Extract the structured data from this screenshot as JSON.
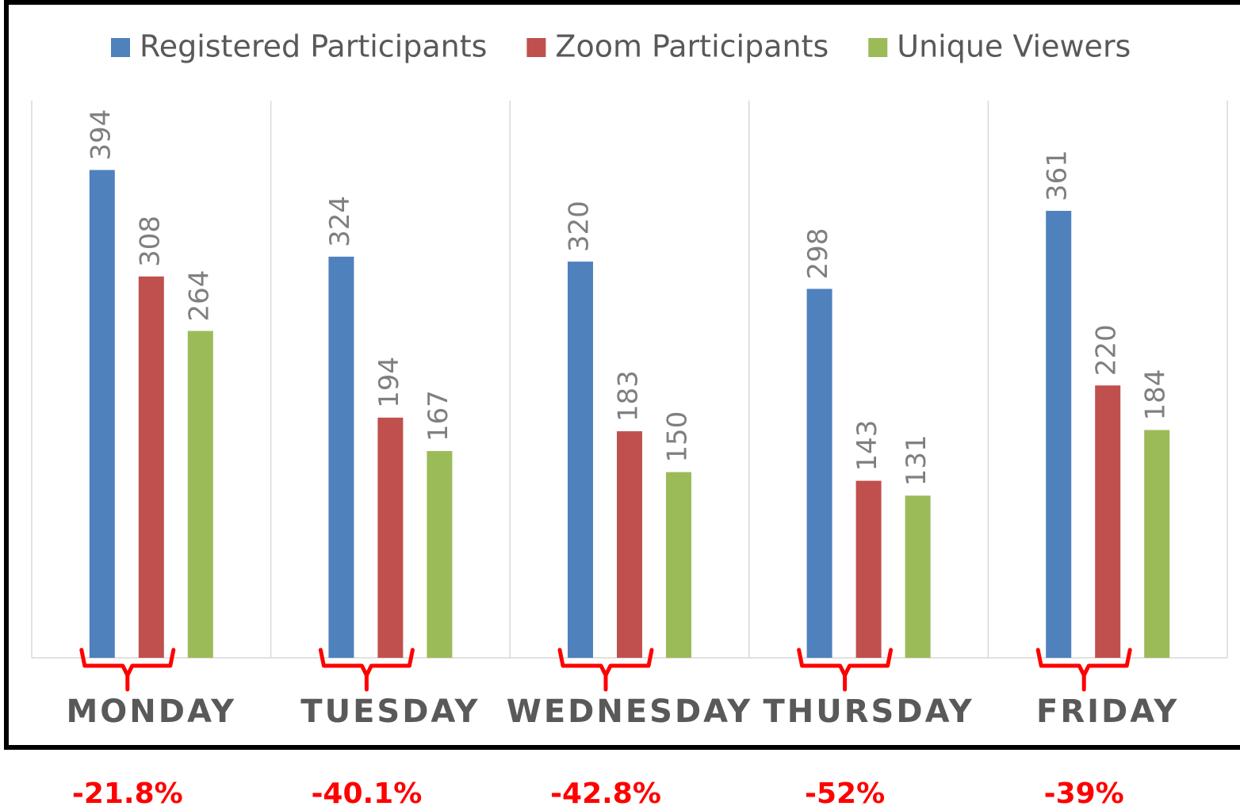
{
  "chart_data": {
    "type": "bar",
    "categories": [
      "MONDAY",
      "TUESDAY",
      "WEDNESDAY",
      "THURSDAY",
      "FRIDAY"
    ],
    "series": [
      {
        "name": "Registered Participants",
        "color": "#4f81bd",
        "values": [
          394,
          324,
          320,
          298,
          361
        ]
      },
      {
        "name": "Zoom Participants",
        "color": "#c0504d",
        "values": [
          308,
          194,
          183,
          143,
          220
        ]
      },
      {
        "name": "Unique Viewers",
        "color": "#9bbb59",
        "values": [
          264,
          167,
          150,
          131,
          184
        ]
      }
    ],
    "ylim": [
      0,
      450
    ],
    "legend": "top",
    "annotations": [
      "-21.8%",
      "-40.1%",
      "-42.8%",
      "-52%",
      "-39%"
    ]
  }
}
